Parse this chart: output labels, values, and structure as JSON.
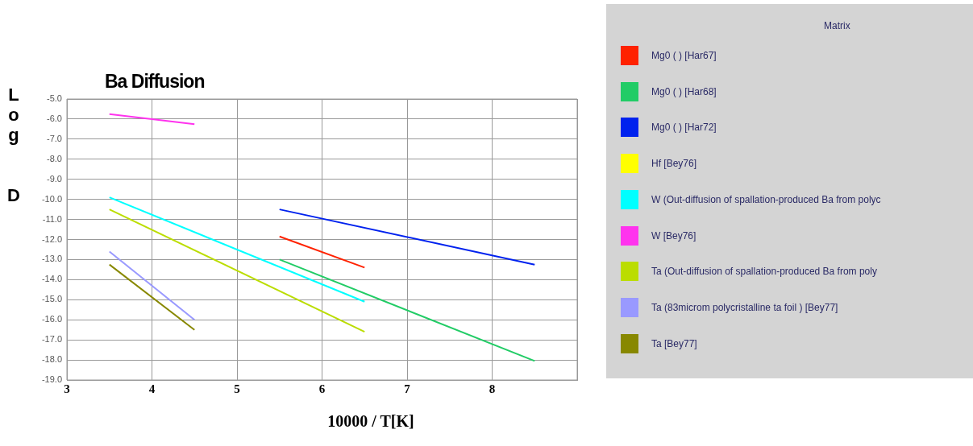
{
  "chart_data": {
    "type": "line",
    "title": "Ba Diffusion",
    "xlabel": "10000 / T[K]",
    "ylabel": "Log D",
    "legend_title": "Matrix",
    "legend": "right",
    "grid": true,
    "marker": "none",
    "line_style": "solid",
    "xlim": [
      3,
      9
    ],
    "xticks": [
      3,
      4,
      5,
      6,
      7,
      8,
      {
        "value": 9,
        "label": null
      }
    ],
    "ylim": [
      -19,
      -5
    ],
    "yticks": [
      {
        "value": -5,
        "label": "-5.0"
      },
      {
        "value": -6,
        "label": "-6.0"
      },
      {
        "value": -7,
        "label": "-7.0"
      },
      {
        "value": -8,
        "label": "-8.0"
      },
      {
        "value": -9,
        "label": "-9.0"
      },
      {
        "value": -10,
        "label": "-10.0"
      },
      {
        "value": -11,
        "label": "-11.0"
      },
      {
        "value": -12,
        "label": "-12.0"
      },
      {
        "value": -13,
        "label": "-13.0"
      },
      {
        "value": -14,
        "label": "-14.0"
      },
      {
        "value": -15,
        "label": "-15.0"
      },
      {
        "value": -16,
        "label": "-16.0"
      },
      {
        "value": -17,
        "label": "-17.0"
      },
      {
        "value": -18,
        "label": "-18.0"
      },
      {
        "value": -19,
        "label": "-19.0"
      }
    ],
    "series": [
      {
        "name": "Mg0 ( ) [Har67]",
        "color": "#ff2200",
        "x": [
          5.5,
          6.5
        ],
        "values": [
          -11.85,
          -13.4
        ]
      },
      {
        "name": "Mg0 ( ) [Har68]",
        "color": "#22cc66",
        "x": [
          5.5,
          8.5
        ],
        "values": [
          -13.0,
          -18.05
        ]
      },
      {
        "name": "Mg0 ( ) [Har72]",
        "color": "#0022ee",
        "x": [
          5.5,
          8.5
        ],
        "values": [
          -10.5,
          -13.25
        ]
      },
      {
        "name": "Hf [Bey76]",
        "color": "#ffff00"
      },
      {
        "name": "W (Out-diffusion of spallation-produced Ba from polyc",
        "color": "#00ffff",
        "x": [
          3.5,
          6.5
        ],
        "values": [
          -9.9,
          -15.1
        ]
      },
      {
        "name": "W [Bey76]",
        "color": "#ff33ee",
        "x": [
          3.5,
          4.5
        ],
        "values": [
          -5.75,
          -6.25
        ]
      },
      {
        "name": "Ta (Out-diffusion of spallation-produced Ba from poly",
        "color": "#bbdd00",
        "x": [
          3.5,
          6.5
        ],
        "values": [
          -10.5,
          -16.6
        ]
      },
      {
        "name": "Ta (83microm polycristalline ta foil ) [Bey77]",
        "color": "#9999ff",
        "x": [
          3.5,
          4.5
        ],
        "values": [
          -12.6,
          -16.0
        ]
      },
      {
        "name": "Ta [Bey77]",
        "color": "#888800",
        "x": [
          3.5,
          4.5
        ],
        "values": [
          -13.25,
          -16.5
        ]
      }
    ]
  }
}
